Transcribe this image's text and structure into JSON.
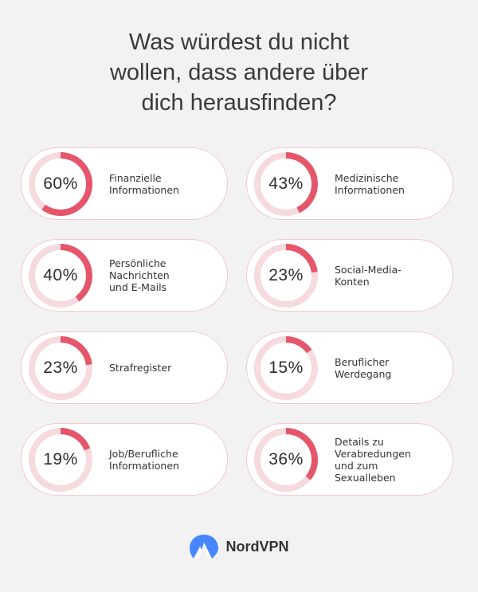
{
  "title_lines": [
    "Was würdest du nicht",
    "wollen, dass andere über",
    "dich herausfinden?"
  ],
  "colors": {
    "accent": "#e5566b",
    "track": "#f6dadd",
    "border": "#f0c9cf",
    "logo": "#4687ff"
  },
  "chart_data": {
    "type": "bar",
    "title": "Was würdest du nicht wollen, dass andere über dich herausfinden?",
    "categories": [
      "Finanzielle Informationen",
      "Medizinische Informationen",
      "Persönliche Nachrichten und E-Mails",
      "Social-Media-Konten",
      "Strafregister",
      "Beruflicher Werdegang",
      "Job/Berufliche Informationen",
      "Details zu Verabredungen und zum Sexualleben"
    ],
    "values": [
      60,
      43,
      40,
      23,
      23,
      15,
      19,
      36
    ],
    "items": [
      {
        "percent": 60,
        "percent_label": "60%",
        "label_lines": [
          "Finanzielle",
          "Informationen"
        ]
      },
      {
        "percent": 43,
        "percent_label": "43%",
        "label_lines": [
          "Medizinische",
          "Informationen"
        ]
      },
      {
        "percent": 40,
        "percent_label": "40%",
        "label_lines": [
          "Persönliche",
          "Nachrichten",
          "und E-Mails"
        ]
      },
      {
        "percent": 23,
        "percent_label": "23%",
        "label_lines": [
          "Social-Media-",
          "Konten"
        ]
      },
      {
        "percent": 23,
        "percent_label": "23%",
        "label_lines": [
          "Strafregister"
        ]
      },
      {
        "percent": 15,
        "percent_label": "15%",
        "label_lines": [
          "Beruflicher",
          "Werdegang"
        ]
      },
      {
        "percent": 19,
        "percent_label": "19%",
        "label_lines": [
          "Job/Berufliche",
          "Informationen"
        ]
      },
      {
        "percent": 36,
        "percent_label": "36%",
        "label_lines": [
          "Details zu",
          "Verabredungen",
          "und zum",
          "Sexualleben"
        ]
      }
    ]
  },
  "logo": {
    "text": "NordVPN",
    "icon": "nordvpn-mountain-icon"
  }
}
